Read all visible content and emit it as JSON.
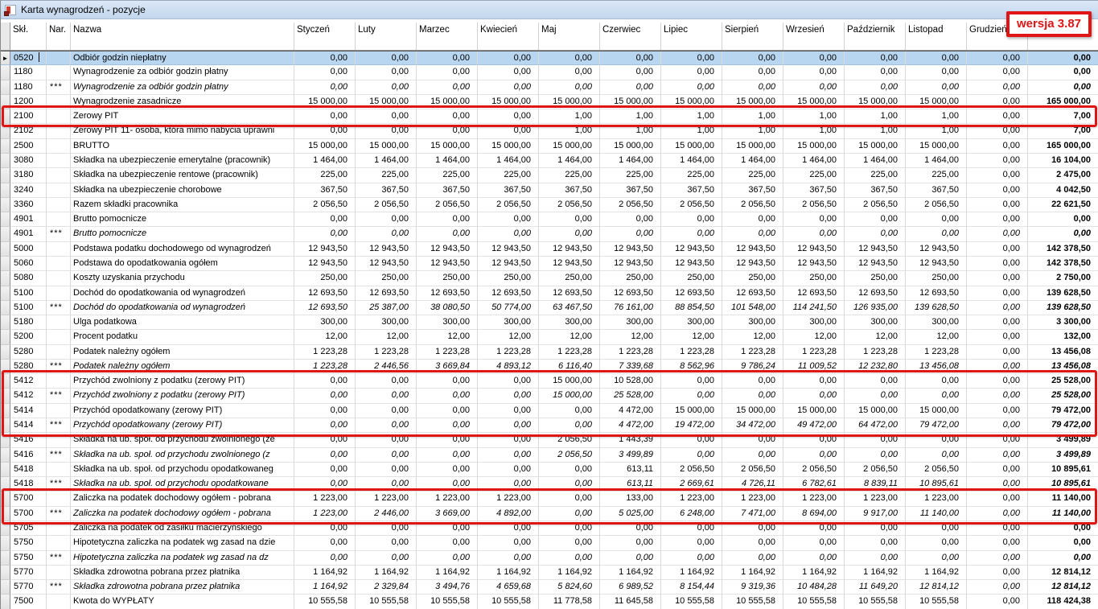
{
  "window": {
    "title": "Karta wynagrodzeń - pozycje"
  },
  "version_badge": {
    "text": "wersja 3.87",
    "color": "#e01515"
  },
  "grid": {
    "columns": [
      "Skł.",
      "Nar.",
      "Nazwa",
      "Styczeń",
      "Luty",
      "Marzec",
      "Kwiecień",
      "Maj",
      "Czerwiec",
      "Lipiec",
      "Sierpień",
      "Wrzesień",
      "Październik",
      "Listopad",
      "Grudzień",
      ""
    ],
    "selected_row_index": 0,
    "selection_marker": "►",
    "rows": [
      {
        "code": "0520",
        "nar": "",
        "italic": false,
        "name": "Odbiór godzin niepłatny",
        "values": [
          "0,00",
          "0,00",
          "0,00",
          "0,00",
          "0,00",
          "0,00",
          "0,00",
          "0,00",
          "0,00",
          "0,00",
          "0,00",
          "0,00",
          "0,00"
        ]
      },
      {
        "code": "1180",
        "nar": "",
        "italic": false,
        "name": "Wynagrodzenie za odbiór godzin płatny",
        "values": [
          "0,00",
          "0,00",
          "0,00",
          "0,00",
          "0,00",
          "0,00",
          "0,00",
          "0,00",
          "0,00",
          "0,00",
          "0,00",
          "0,00",
          "0,00"
        ]
      },
      {
        "code": "1180",
        "nar": "***",
        "italic": true,
        "name": "Wynagrodzenie za odbiór godzin płatny",
        "values": [
          "0,00",
          "0,00",
          "0,00",
          "0,00",
          "0,00",
          "0,00",
          "0,00",
          "0,00",
          "0,00",
          "0,00",
          "0,00",
          "0,00",
          "0,00"
        ]
      },
      {
        "code": "1200",
        "nar": "",
        "italic": false,
        "name": "Wynagrodzenie zasadnicze",
        "values": [
          "15 000,00",
          "15 000,00",
          "15 000,00",
          "15 000,00",
          "15 000,00",
          "15 000,00",
          "15 000,00",
          "15 000,00",
          "15 000,00",
          "15 000,00",
          "15 000,00",
          "0,00",
          "165 000,00"
        ]
      },
      {
        "code": "2100",
        "nar": "",
        "italic": false,
        "name": "Zerowy PIT",
        "values": [
          "0,00",
          "0,00",
          "0,00",
          "0,00",
          "1,00",
          "1,00",
          "1,00",
          "1,00",
          "1,00",
          "1,00",
          "1,00",
          "0,00",
          "7,00"
        ]
      },
      {
        "code": "2102",
        "nar": "",
        "italic": false,
        "name": "Zerowy PIT 11- osoba, która mimo nabycia uprawni",
        "values": [
          "0,00",
          "0,00",
          "0,00",
          "0,00",
          "1,00",
          "1,00",
          "1,00",
          "1,00",
          "1,00",
          "1,00",
          "1,00",
          "0,00",
          "7,00"
        ]
      },
      {
        "code": "2500",
        "nar": "",
        "italic": false,
        "name": "BRUTTO",
        "values": [
          "15 000,00",
          "15 000,00",
          "15 000,00",
          "15 000,00",
          "15 000,00",
          "15 000,00",
          "15 000,00",
          "15 000,00",
          "15 000,00",
          "15 000,00",
          "15 000,00",
          "0,00",
          "165 000,00"
        ]
      },
      {
        "code": "3080",
        "nar": "",
        "italic": false,
        "name": "Składka na ubezpieczenie emerytalne (pracownik)",
        "values": [
          "1 464,00",
          "1 464,00",
          "1 464,00",
          "1 464,00",
          "1 464,00",
          "1 464,00",
          "1 464,00",
          "1 464,00",
          "1 464,00",
          "1 464,00",
          "1 464,00",
          "0,00",
          "16 104,00"
        ]
      },
      {
        "code": "3180",
        "nar": "",
        "italic": false,
        "name": "Składka na ubezpieczenie rentowe (pracownik)",
        "values": [
          "225,00",
          "225,00",
          "225,00",
          "225,00",
          "225,00",
          "225,00",
          "225,00",
          "225,00",
          "225,00",
          "225,00",
          "225,00",
          "0,00",
          "2 475,00"
        ]
      },
      {
        "code": "3240",
        "nar": "",
        "italic": false,
        "name": "Składka na ubezpieczenie chorobowe",
        "values": [
          "367,50",
          "367,50",
          "367,50",
          "367,50",
          "367,50",
          "367,50",
          "367,50",
          "367,50",
          "367,50",
          "367,50",
          "367,50",
          "0,00",
          "4 042,50"
        ]
      },
      {
        "code": "3360",
        "nar": "",
        "italic": false,
        "name": "Razem składki pracownika",
        "values": [
          "2 056,50",
          "2 056,50",
          "2 056,50",
          "2 056,50",
          "2 056,50",
          "2 056,50",
          "2 056,50",
          "2 056,50",
          "2 056,50",
          "2 056,50",
          "2 056,50",
          "0,00",
          "22 621,50"
        ]
      },
      {
        "code": "4901",
        "nar": "",
        "italic": false,
        "name": "Brutto pomocnicze",
        "values": [
          "0,00",
          "0,00",
          "0,00",
          "0,00",
          "0,00",
          "0,00",
          "0,00",
          "0,00",
          "0,00",
          "0,00",
          "0,00",
          "0,00",
          "0,00"
        ]
      },
      {
        "code": "4901",
        "nar": "***",
        "italic": true,
        "name": "Brutto pomocnicze",
        "values": [
          "0,00",
          "0,00",
          "0,00",
          "0,00",
          "0,00",
          "0,00",
          "0,00",
          "0,00",
          "0,00",
          "0,00",
          "0,00",
          "0,00",
          "0,00"
        ]
      },
      {
        "code": "5000",
        "nar": "",
        "italic": false,
        "name": "Podstawa podatku dochodowego od wynagrodzeń",
        "values": [
          "12 943,50",
          "12 943,50",
          "12 943,50",
          "12 943,50",
          "12 943,50",
          "12 943,50",
          "12 943,50",
          "12 943,50",
          "12 943,50",
          "12 943,50",
          "12 943,50",
          "0,00",
          "142 378,50"
        ]
      },
      {
        "code": "5060",
        "nar": "",
        "italic": false,
        "name": "Podstawa do opodatkowania ogółem",
        "values": [
          "12 943,50",
          "12 943,50",
          "12 943,50",
          "12 943,50",
          "12 943,50",
          "12 943,50",
          "12 943,50",
          "12 943,50",
          "12 943,50",
          "12 943,50",
          "12 943,50",
          "0,00",
          "142 378,50"
        ]
      },
      {
        "code": "5080",
        "nar": "",
        "italic": false,
        "name": "Koszty uzyskania przychodu",
        "values": [
          "250,00",
          "250,00",
          "250,00",
          "250,00",
          "250,00",
          "250,00",
          "250,00",
          "250,00",
          "250,00",
          "250,00",
          "250,00",
          "0,00",
          "2 750,00"
        ]
      },
      {
        "code": "5100",
        "nar": "",
        "italic": false,
        "name": "Dochód do opodatkowania od wynagrodzeń",
        "values": [
          "12 693,50",
          "12 693,50",
          "12 693,50",
          "12 693,50",
          "12 693,50",
          "12 693,50",
          "12 693,50",
          "12 693,50",
          "12 693,50",
          "12 693,50",
          "12 693,50",
          "0,00",
          "139 628,50"
        ]
      },
      {
        "code": "5100",
        "nar": "***",
        "italic": true,
        "name": "Dochód do opodatkowania od wynagrodzeń",
        "values": [
          "12 693,50",
          "25 387,00",
          "38 080,50",
          "50 774,00",
          "63 467,50",
          "76 161,00",
          "88 854,50",
          "101 548,00",
          "114 241,50",
          "126 935,00",
          "139 628,50",
          "0,00",
          "139 628,50"
        ]
      },
      {
        "code": "5180",
        "nar": "",
        "italic": false,
        "name": "Ulga podatkowa",
        "values": [
          "300,00",
          "300,00",
          "300,00",
          "300,00",
          "300,00",
          "300,00",
          "300,00",
          "300,00",
          "300,00",
          "300,00",
          "300,00",
          "0,00",
          "3 300,00"
        ]
      },
      {
        "code": "5200",
        "nar": "",
        "italic": false,
        "name": "Procent podatku",
        "values": [
          "12,00",
          "12,00",
          "12,00",
          "12,00",
          "12,00",
          "12,00",
          "12,00",
          "12,00",
          "12,00",
          "12,00",
          "12,00",
          "0,00",
          "132,00"
        ]
      },
      {
        "code": "5280",
        "nar": "",
        "italic": false,
        "name": "Podatek należny ogółem",
        "values": [
          "1 223,28",
          "1 223,28",
          "1 223,28",
          "1 223,28",
          "1 223,28",
          "1 223,28",
          "1 223,28",
          "1 223,28",
          "1 223,28",
          "1 223,28",
          "1 223,28",
          "0,00",
          "13 456,08"
        ]
      },
      {
        "code": "5280",
        "nar": "***",
        "italic": true,
        "name": "Podatek należny ogółem",
        "values": [
          "1 223,28",
          "2 446,56",
          "3 669,84",
          "4 893,12",
          "6 116,40",
          "7 339,68",
          "8 562,96",
          "9 786,24",
          "11 009,52",
          "12 232,80",
          "13 456,08",
          "0,00",
          "13 456,08"
        ]
      },
      {
        "code": "5412",
        "nar": "",
        "italic": false,
        "name": "Przychód zwolniony z podatku (zerowy PIT)",
        "values": [
          "0,00",
          "0,00",
          "0,00",
          "0,00",
          "15 000,00",
          "10 528,00",
          "0,00",
          "0,00",
          "0,00",
          "0,00",
          "0,00",
          "0,00",
          "25 528,00"
        ]
      },
      {
        "code": "5412",
        "nar": "***",
        "italic": true,
        "name": "Przychód zwolniony z podatku (zerowy PIT)",
        "values": [
          "0,00",
          "0,00",
          "0,00",
          "0,00",
          "15 000,00",
          "25 528,00",
          "0,00",
          "0,00",
          "0,00",
          "0,00",
          "0,00",
          "0,00",
          "25 528,00"
        ]
      },
      {
        "code": "5414",
        "nar": "",
        "italic": false,
        "name": "Przychód opodatkowany (zerowy PIT)",
        "values": [
          "0,00",
          "0,00",
          "0,00",
          "0,00",
          "0,00",
          "4 472,00",
          "15 000,00",
          "15 000,00",
          "15 000,00",
          "15 000,00",
          "15 000,00",
          "0,00",
          "79 472,00"
        ]
      },
      {
        "code": "5414",
        "nar": "***",
        "italic": true,
        "name": "Przychód opodatkowany (zerowy PIT)",
        "values": [
          "0,00",
          "0,00",
          "0,00",
          "0,00",
          "0,00",
          "4 472,00",
          "19 472,00",
          "34 472,00",
          "49 472,00",
          "64 472,00",
          "79 472,00",
          "0,00",
          "79 472,00"
        ]
      },
      {
        "code": "5416",
        "nar": "",
        "italic": false,
        "name": "Składka na ub. społ. od przychodu zwolnionego (ze",
        "values": [
          "0,00",
          "0,00",
          "0,00",
          "0,00",
          "2 056,50",
          "1 443,39",
          "0,00",
          "0,00",
          "0,00",
          "0,00",
          "0,00",
          "0,00",
          "3 499,89"
        ]
      },
      {
        "code": "5416",
        "nar": "***",
        "italic": true,
        "name": "Składka na ub. społ. od przychodu zwolnionego (z",
        "values": [
          "0,00",
          "0,00",
          "0,00",
          "0,00",
          "2 056,50",
          "3 499,89",
          "0,00",
          "0,00",
          "0,00",
          "0,00",
          "0,00",
          "0,00",
          "3 499,89"
        ]
      },
      {
        "code": "5418",
        "nar": "",
        "italic": false,
        "name": "Składka na ub. społ. od przychodu opodatkowaneg",
        "values": [
          "0,00",
          "0,00",
          "0,00",
          "0,00",
          "0,00",
          "613,11",
          "2 056,50",
          "2 056,50",
          "2 056,50",
          "2 056,50",
          "2 056,50",
          "0,00",
          "10 895,61"
        ]
      },
      {
        "code": "5418",
        "nar": "***",
        "italic": true,
        "name": "Składka na ub. społ. od przychodu opodatkowane",
        "values": [
          "0,00",
          "0,00",
          "0,00",
          "0,00",
          "0,00",
          "613,11",
          "2 669,61",
          "4 726,11",
          "6 782,61",
          "8 839,11",
          "10 895,61",
          "0,00",
          "10 895,61"
        ]
      },
      {
        "code": "5700",
        "nar": "",
        "italic": false,
        "name": "Zaliczka na podatek dochodowy ogółem - pobrana",
        "values": [
          "1 223,00",
          "1 223,00",
          "1 223,00",
          "1 223,00",
          "0,00",
          "133,00",
          "1 223,00",
          "1 223,00",
          "1 223,00",
          "1 223,00",
          "1 223,00",
          "0,00",
          "11 140,00"
        ]
      },
      {
        "code": "5700",
        "nar": "***",
        "italic": true,
        "name": "Zaliczka na podatek dochodowy ogółem - pobrana",
        "values": [
          "1 223,00",
          "2 446,00",
          "3 669,00",
          "4 892,00",
          "0,00",
          "5 025,00",
          "6 248,00",
          "7 471,00",
          "8 694,00",
          "9 917,00",
          "11 140,00",
          "0,00",
          "11 140,00"
        ]
      },
      {
        "code": "5705",
        "nar": "",
        "italic": false,
        "name": "Zaliczka na podatek od zasiłku macierzyńskiego",
        "values": [
          "0,00",
          "0,00",
          "0,00",
          "0,00",
          "0,00",
          "0,00",
          "0,00",
          "0,00",
          "0,00",
          "0,00",
          "0,00",
          "0,00",
          "0,00"
        ]
      },
      {
        "code": "5750",
        "nar": "",
        "italic": false,
        "name": "Hipotetyczna zaliczka na podatek wg zasad  na dzie",
        "values": [
          "0,00",
          "0,00",
          "0,00",
          "0,00",
          "0,00",
          "0,00",
          "0,00",
          "0,00",
          "0,00",
          "0,00",
          "0,00",
          "0,00",
          "0,00"
        ]
      },
      {
        "code": "5750",
        "nar": "***",
        "italic": true,
        "name": "Hipotetyczna zaliczka na podatek wg zasad  na dz",
        "values": [
          "0,00",
          "0,00",
          "0,00",
          "0,00",
          "0,00",
          "0,00",
          "0,00",
          "0,00",
          "0,00",
          "0,00",
          "0,00",
          "0,00",
          "0,00"
        ]
      },
      {
        "code": "5770",
        "nar": "",
        "italic": false,
        "name": "Składka zdrowotna pobrana przez płatnika",
        "values": [
          "1 164,92",
          "1 164,92",
          "1 164,92",
          "1 164,92",
          "1 164,92",
          "1 164,92",
          "1 164,92",
          "1 164,92",
          "1 164,92",
          "1 164,92",
          "1 164,92",
          "0,00",
          "12 814,12"
        ]
      },
      {
        "code": "5770",
        "nar": "***",
        "italic": true,
        "name": "Składka zdrowotna pobrana przez płatnika",
        "values": [
          "1 164,92",
          "2 329,84",
          "3 494,76",
          "4 659,68",
          "5 824,60",
          "6 989,52",
          "8 154,44",
          "9 319,36",
          "10 484,28",
          "11 649,20",
          "12 814,12",
          "0,00",
          "12 814,12"
        ]
      },
      {
        "code": "7500",
        "nar": "",
        "italic": false,
        "name": "Kwota do WYPŁATY",
        "values": [
          "10 555,58",
          "10 555,58",
          "10 555,58",
          "10 555,58",
          "11 778,58",
          "11 645,58",
          "10 555,58",
          "10 555,58",
          "10 555,58",
          "10 555,58",
          "10 555,58",
          "0,00",
          "118 424,38"
        ]
      }
    ]
  },
  "annotations": {
    "color": "#e01515",
    "boxes": [
      {
        "name": "highlight-zerowy-pit",
        "first_row": 4,
        "last_row": 4
      },
      {
        "name": "highlight-przychod-zerowy-pit",
        "first_row": 22,
        "last_row": 25
      },
      {
        "name": "highlight-zaliczka-pobrana",
        "first_row": 30,
        "last_row": 31
      }
    ]
  }
}
